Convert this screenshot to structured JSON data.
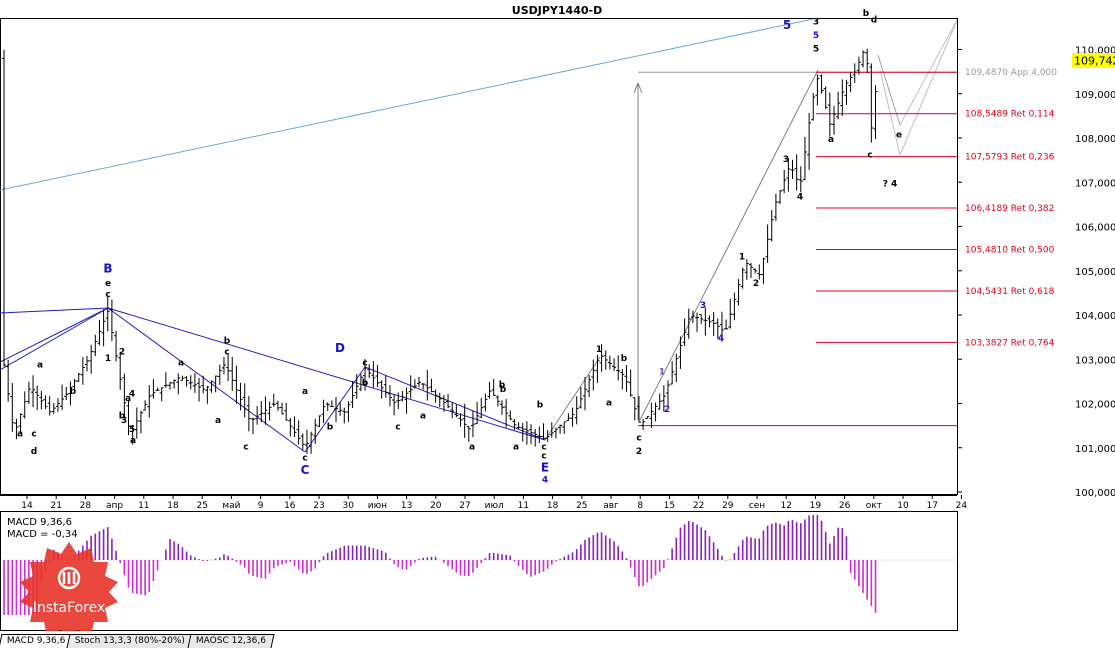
{
  "window": {
    "title": "USDJPY1440-D"
  },
  "price_badge": "109,742",
  "chart_data": [
    {
      "type": "candlestick",
      "title": "USDJPY1440-D",
      "ylim": [
        100.0,
        110.5
      ],
      "y_ticks": [
        "110,000",
        "109,000",
        "108,000",
        "107,000",
        "106,000",
        "105,000",
        "104,000",
        "103,000",
        "102,000",
        "101,000",
        "100,000"
      ],
      "x_ticks": [
        "14",
        "21",
        "28",
        "апр",
        "11",
        "18",
        "25",
        "май",
        "9",
        "16",
        "23",
        "30",
        "июн",
        "13",
        "20",
        "27",
        "июл",
        "11",
        "18",
        "25",
        "авг",
        "8",
        "15",
        "22",
        "29",
        "сен",
        "12",
        "19",
        "26",
        "окт",
        "10",
        "17",
        "24"
      ],
      "fib_levels": [
        {
          "price": 109.487,
          "label": "109,4870 App 4,000",
          "color": "#9a9a9a"
        },
        {
          "price": 108.5489,
          "label": "108,5489 Ret 0,114",
          "color": "#e0001a"
        },
        {
          "price": 107.5793,
          "label": "107,5793 Ret 0,236",
          "color": "#e0001a"
        },
        {
          "price": 106.4189,
          "label": "106,4189 Ret 0,382",
          "color": "#e0001a"
        },
        {
          "price": 105.481,
          "label": "105,4810 Ret 0,500",
          "color": "#e0001a"
        },
        {
          "price": 104.5431,
          "label": "104,5431 Ret 0,618",
          "color": "#e0001a"
        },
        {
          "price": 103.3827,
          "label": "103,3827 Ret 0,764",
          "color": "#e0001a"
        }
      ],
      "wave_labels": [
        {
          "text": "B",
          "color": "#1c10c8",
          "x": 1,
          "y": 105.05
        },
        {
          "text": "e",
          "color": "#000000",
          "x": 1,
          "y": 104.75
        },
        {
          "text": "c",
          "color": "#000000",
          "x": 1,
          "y": 104.5
        },
        {
          "text": "1",
          "color": "#000000",
          "x": 1,
          "y": 103.05
        },
        {
          "text": "2",
          "color": "#000000",
          "x": 2,
          "y": 103.2
        },
        {
          "text": "4",
          "color": "#000000",
          "x": 2,
          "y": 102.25
        },
        {
          "text": "3",
          "color": "#000000",
          "x": 1,
          "y": 101.65
        },
        {
          "text": "5",
          "color": "#000000",
          "x": 2,
          "y": 101.45
        },
        {
          "text": "a",
          "color": "#000000",
          "x": 2,
          "y": 101.2
        },
        {
          "text": "a",
          "color": "#000000",
          "x": 0,
          "y": 101.35
        },
        {
          "text": "c",
          "color": "#000000",
          "x": 0,
          "y": 101.35
        },
        {
          "text": "d",
          "color": "#000000",
          "x": 0,
          "y": 100.95
        },
        {
          "text": "a",
          "color": "#000000",
          "x": 0,
          "y": 102.9
        },
        {
          "text": "b",
          "color": "#000000",
          "x": 0,
          "y": 102.3
        },
        {
          "text": "b",
          "color": "#000000",
          "x": 2,
          "y": 101.75
        },
        {
          "text": "a",
          "color": "#000000",
          "x": 1,
          "y": 102.15
        },
        {
          "text": "a",
          "color": "#000000",
          "x": 1,
          "y": 102.95
        },
        {
          "text": "b",
          "color": "#000000",
          "x": 1,
          "y": 103.45
        },
        {
          "text": "c",
          "color": "#000000",
          "x": 1,
          "y": 103.2
        },
        {
          "text": "a",
          "color": "#000000",
          "x": 2,
          "y": 101.65
        },
        {
          "text": "c",
          "color": "#000000",
          "x": 3,
          "y": 101.05
        },
        {
          "text": "c",
          "color": "#000000",
          "x": 3,
          "y": 100.8
        },
        {
          "text": "C",
          "color": "#1c10c8",
          "x": 3,
          "y": 100.5
        },
        {
          "text": "a",
          "color": "#000000",
          "x": 3,
          "y": 102.3
        },
        {
          "text": "b",
          "color": "#000000",
          "x": 0,
          "y": 101.5
        },
        {
          "text": "D",
          "color": "#1c10c8",
          "x": 3,
          "y": 103.25
        },
        {
          "text": "c",
          "color": "#000000",
          "x": 3,
          "y": 102.95
        },
        {
          "text": "b",
          "color": "#000000",
          "x": 0,
          "y": 102.5
        },
        {
          "text": "a",
          "color": "#000000",
          "x": 0,
          "y": 101.75
        },
        {
          "text": "c",
          "color": "#000000",
          "x": 3,
          "y": 101.5
        },
        {
          "text": "b",
          "color": "#000000",
          "x": 0,
          "y": 102.35
        },
        {
          "text": "a",
          "color": "#000000",
          "x": 2,
          "y": 101.05
        },
        {
          "text": "b",
          "color": "#000000",
          "x": 0,
          "y": 102.45
        },
        {
          "text": "a",
          "color": "#000000",
          "x": 2,
          "y": 101.05
        },
        {
          "text": "b",
          "color": "#000000",
          "x": 0,
          "y": 102.0
        },
        {
          "text": "c",
          "color": "#000000",
          "x": 3,
          "y": 101.05
        },
        {
          "text": "c",
          "color": "#000000",
          "x": 3,
          "y": 100.85
        },
        {
          "text": "E",
          "color": "#1c10c8",
          "x": 3,
          "y": 100.55
        },
        {
          "text": "4",
          "color": "#1c10c8",
          "x": 3,
          "y": 100.3
        },
        {
          "text": "1",
          "color": "#000000",
          "x": 0,
          "y": 103.25
        },
        {
          "text": "b",
          "color": "#000000",
          "x": 0,
          "y": 103.05
        },
        {
          "text": "a",
          "color": "#000000",
          "x": 0,
          "y": 102.05
        },
        {
          "text": "c",
          "color": "#000000",
          "x": 3,
          "y": 101.25
        },
        {
          "text": "2",
          "color": "#000000",
          "x": 3,
          "y": 100.95
        },
        {
          "text": "1",
          "color": "#5a5ad8",
          "x": 0,
          "y": 102.75
        },
        {
          "text": "2",
          "color": "#1c10c8",
          "x": 3,
          "y": 101.9
        },
        {
          "text": "3",
          "color": "#1c10c8",
          "x": 0,
          "y": 104.25
        },
        {
          "text": "4",
          "color": "#1c10c8",
          "x": 3,
          "y": 103.5
        },
        {
          "text": "1",
          "color": "#000000",
          "x": 0,
          "y": 105.35
        },
        {
          "text": "2",
          "color": "#000000",
          "x": 3,
          "y": 104.75
        },
        {
          "text": "3",
          "color": "#000000",
          "x": 0,
          "y": 107.55
        },
        {
          "text": "4",
          "color": "#000000",
          "x": 3,
          "y": 106.7
        },
        {
          "text": "5",
          "color": "#1c10c8",
          "x": 0,
          "y": 110.55
        },
        {
          "text": "3",
          "color": "#000000",
          "x": 0,
          "y": 110.65
        },
        {
          "text": "5",
          "color": "#1c10c8",
          "x": 0,
          "y": 110.35
        },
        {
          "text": "5",
          "color": "#000000",
          "x": 0,
          "y": 110.05
        },
        {
          "text": "a",
          "color": "#000000",
          "x": 3,
          "y": 108.0
        },
        {
          "text": "b",
          "color": "#000000",
          "x": 0,
          "y": 110.85
        },
        {
          "text": "d",
          "color": "#000000",
          "x": 0,
          "y": 110.7
        },
        {
          "text": "c",
          "color": "#000000",
          "x": 3,
          "y": 107.65
        },
        {
          "text": "e",
          "color": "#000000",
          "x": 3,
          "y": 108.1
        },
        {
          "text": "? 4",
          "color": "#000000",
          "x": 3,
          "y": 107.0
        }
      ],
      "indicator": {
        "name_line": "MACD 9,36,6",
        "value_line": "MACD = -0,34"
      }
    }
  ],
  "tabs": [
    {
      "label": "MACD 9,36,6",
      "active": true
    },
    {
      "label": "Stoch 13,3,3 (80%-20%)",
      "active": false
    },
    {
      "label": "MAOSC 12,36,6",
      "active": false
    }
  ],
  "logo": {
    "text": "InstaForex"
  }
}
